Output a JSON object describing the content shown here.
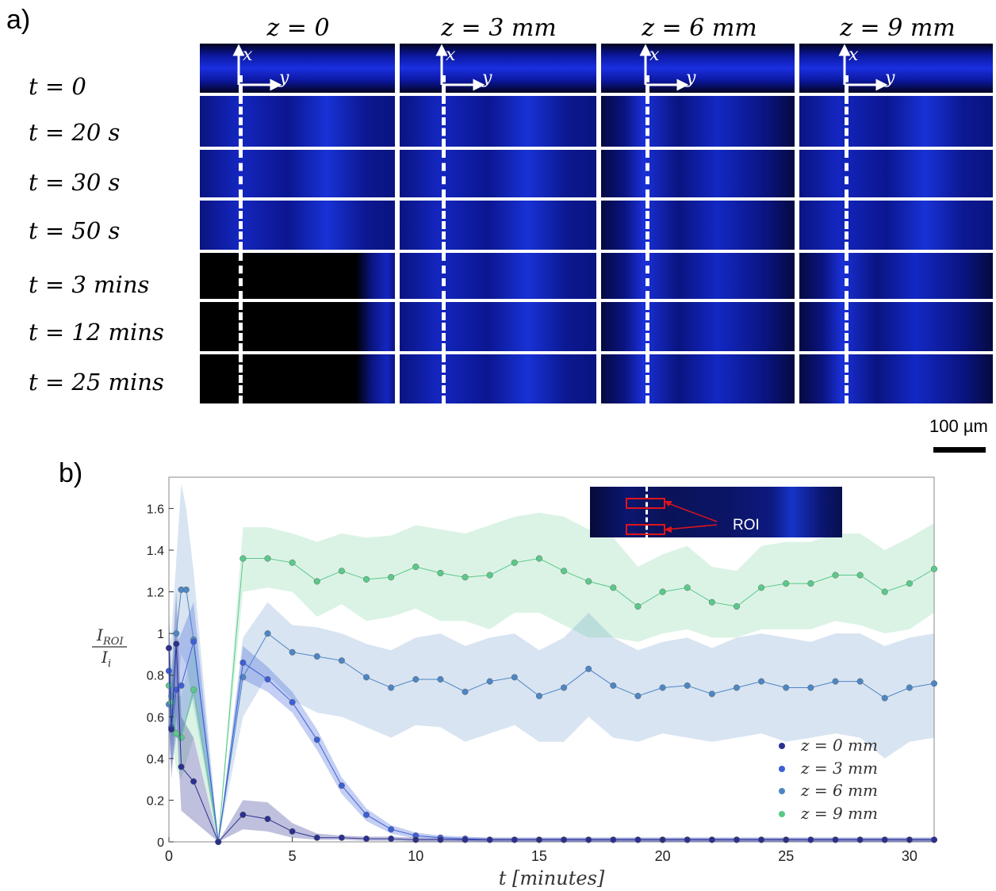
{
  "panel_a": {
    "label": "a)",
    "column_headers": [
      "z =  0",
      "z =  3 mm",
      "z =  6 mm",
      "z =  9 mm"
    ],
    "row_labels": [
      "t = 0",
      "t = 20 s",
      "t = 30 s",
      "t = 50 s",
      "t =  3 mins",
      "t =  12 mins",
      "t =  25 mins"
    ],
    "axis_x_label": "x",
    "axis_y_label": "y",
    "scale_bar": "100 µm"
  },
  "panel_b": {
    "label": "b)",
    "inset_label": "ROI",
    "ylabel_numerator": "I",
    "ylabel_numerator_sub": "ROI",
    "ylabel_denominator": "I",
    "ylabel_denominator_sub": "i",
    "xlabel": "t [minutes]"
  },
  "colors": {
    "z0": "#2b2f8f",
    "z3": "#3c5fd6",
    "z6": "#4d86c4",
    "z9": "#5ac98a",
    "tile_blue": "#1d2ee6"
  },
  "chart_data": {
    "type": "line",
    "xlabel": "t [minutes]",
    "ylabel": "I_ROI / I_i",
    "xlim": [
      0,
      31
    ],
    "ylim": [
      0,
      1.75
    ],
    "xticks": [
      0,
      5,
      10,
      15,
      20,
      25,
      30
    ],
    "yticks": [
      0,
      0.2,
      0.4,
      0.6,
      0.8,
      1,
      1.2,
      1.4,
      1.6
    ],
    "legend_position": "bottom-right",
    "series": [
      {
        "name": "z = 0 mm",
        "x": [
          0,
          0.1,
          0.3,
          0.5,
          1,
          2,
          3,
          4,
          5,
          6,
          7,
          8,
          9,
          10,
          11,
          12,
          13,
          14,
          15,
          16,
          17,
          18,
          19,
          20,
          21,
          22,
          23,
          24,
          25,
          26,
          27,
          28,
          29,
          30,
          31
        ],
        "y": [
          0.93,
          0.54,
          0.95,
          0.36,
          0.29,
          0.0,
          0.13,
          0.11,
          0.05,
          0.02,
          0.02,
          0.015,
          0.015,
          0.01,
          0.01,
          0.01,
          0.01,
          0.01,
          0.01,
          0.01,
          0.01,
          0.01,
          0.01,
          0.01,
          0.01,
          0.01,
          0.01,
          0.01,
          0.01,
          0.01,
          0.01,
          0.01,
          0.01,
          0.01,
          0.01
        ],
        "lower": [
          0.65,
          0.3,
          0.6,
          0.15,
          0.1,
          0.0,
          0.06,
          0.05,
          0.02,
          0.01,
          0.01,
          0.005,
          0.005,
          0.0,
          0.0,
          0.0,
          0.0,
          0.0,
          0.0,
          0.0,
          0.0,
          0.0,
          0.0,
          0.0,
          0.0,
          0.0,
          0.0,
          0.0,
          0.0,
          0.0,
          0.0,
          0.0,
          0.0,
          0.0,
          0.0
        ],
        "upper": [
          1.1,
          0.8,
          1.2,
          0.6,
          0.5,
          0.0,
          0.2,
          0.19,
          0.09,
          0.04,
          0.03,
          0.025,
          0.025,
          0.02,
          0.02,
          0.02,
          0.02,
          0.02,
          0.02,
          0.02,
          0.02,
          0.02,
          0.02,
          0.02,
          0.02,
          0.02,
          0.02,
          0.02,
          0.02,
          0.02,
          0.02,
          0.02,
          0.02,
          0.02,
          0.02
        ]
      },
      {
        "name": "z = 3 mm",
        "x": [
          0,
          0.1,
          0.3,
          0.5,
          1,
          2,
          3,
          4,
          5,
          6,
          7,
          8,
          9,
          10,
          11,
          12,
          13,
          14,
          15,
          16,
          17,
          18,
          19,
          20,
          21,
          22,
          23,
          24,
          25,
          26,
          27,
          28,
          29,
          30,
          31
        ],
        "y": [
          0.82,
          0.55,
          0.73,
          0.75,
          0.96,
          0.0,
          0.86,
          0.78,
          0.67,
          0.49,
          0.27,
          0.13,
          0.06,
          0.03,
          0.02,
          0.015,
          0.01,
          0.01,
          0.01,
          0.01,
          0.01,
          0.01,
          0.01,
          0.01,
          0.01,
          0.01,
          0.01,
          0.01,
          0.01,
          0.01,
          0.01,
          0.01,
          0.01,
          0.01,
          0.01
        ],
        "lower": [
          0.55,
          0.35,
          0.5,
          0.5,
          0.7,
          0.0,
          0.78,
          0.72,
          0.62,
          0.44,
          0.23,
          0.1,
          0.04,
          0.015,
          0.01,
          0.005,
          0.0,
          0.0,
          0.0,
          0.0,
          0.0,
          0.0,
          0.0,
          0.0,
          0.0,
          0.0,
          0.0,
          0.0,
          0.0,
          0.0,
          0.0,
          0.0,
          0.0,
          0.0,
          0.0
        ],
        "upper": [
          1.05,
          0.75,
          0.95,
          1.0,
          1.15,
          0.0,
          0.94,
          0.84,
          0.72,
          0.54,
          0.31,
          0.16,
          0.08,
          0.045,
          0.03,
          0.025,
          0.02,
          0.02,
          0.02,
          0.02,
          0.02,
          0.02,
          0.02,
          0.02,
          0.02,
          0.02,
          0.02,
          0.02,
          0.02,
          0.02,
          0.02,
          0.02,
          0.02,
          0.02,
          0.02
        ]
      },
      {
        "name": "z = 6 mm",
        "x": [
          0,
          0.1,
          0.3,
          0.5,
          0.7,
          1,
          2,
          3,
          4,
          5,
          6,
          7,
          8,
          9,
          10,
          11,
          12,
          13,
          14,
          15,
          16,
          17,
          18,
          19,
          20,
          21,
          22,
          23,
          24,
          25,
          26,
          27,
          28,
          29,
          30,
          31
        ],
        "y": [
          0.66,
          0.7,
          1.0,
          1.21,
          1.21,
          0.97,
          0.0,
          0.79,
          1.0,
          0.91,
          0.89,
          0.87,
          0.79,
          0.74,
          0.78,
          0.78,
          0.72,
          0.77,
          0.79,
          0.7,
          0.74,
          0.83,
          0.75,
          0.7,
          0.74,
          0.75,
          0.71,
          0.74,
          0.77,
          0.74,
          0.74,
          0.77,
          0.77,
          0.69,
          0.74,
          0.76
        ],
        "lower": [
          0.4,
          0.45,
          0.7,
          0.9,
          0.85,
          0.65,
          0.0,
          0.6,
          0.8,
          0.68,
          0.62,
          0.6,
          0.55,
          0.5,
          0.56,
          0.55,
          0.48,
          0.52,
          0.56,
          0.48,
          0.48,
          0.6,
          0.5,
          0.48,
          0.52,
          0.5,
          0.48,
          0.5,
          0.52,
          0.48,
          0.5,
          0.52,
          0.5,
          0.4,
          0.48,
          0.5
        ],
        "upper": [
          0.9,
          1.0,
          1.35,
          1.72,
          1.6,
          1.3,
          0.0,
          0.98,
          1.15,
          1.04,
          1.03,
          1.0,
          0.95,
          0.92,
          0.98,
          1.0,
          0.94,
          0.98,
          1.0,
          0.92,
          0.98,
          1.1,
          0.98,
          0.92,
          0.96,
          0.98,
          0.93,
          0.98,
          1.0,
          0.98,
          0.96,
          1.0,
          1.0,
          0.94,
          0.98,
          1.0
        ]
      },
      {
        "name": "z = 9 mm",
        "x": [
          0,
          0.1,
          0.3,
          0.5,
          1,
          2,
          3,
          4,
          5,
          6,
          7,
          8,
          9,
          10,
          11,
          12,
          13,
          14,
          15,
          16,
          17,
          18,
          19,
          20,
          21,
          22,
          23,
          24,
          25,
          26,
          27,
          28,
          29,
          30,
          31
        ],
        "y": [
          0.75,
          0.67,
          0.52,
          0.5,
          0.73,
          0.0,
          1.36,
          1.36,
          1.34,
          1.25,
          1.3,
          1.26,
          1.27,
          1.32,
          1.29,
          1.27,
          1.28,
          1.34,
          1.36,
          1.3,
          1.25,
          1.22,
          1.13,
          1.2,
          1.22,
          1.15,
          1.13,
          1.22,
          1.24,
          1.24,
          1.28,
          1.28,
          1.2,
          1.24,
          1.31
        ],
        "lower": [
          0.55,
          0.5,
          0.35,
          0.3,
          0.5,
          0.0,
          1.2,
          1.22,
          1.2,
          1.08,
          1.14,
          1.06,
          1.08,
          1.12,
          1.06,
          1.06,
          1.02,
          1.1,
          1.1,
          1.04,
          0.98,
          0.98,
          0.96,
          1.0,
          1.02,
          0.98,
          0.98,
          1.02,
          1.02,
          1.02,
          1.06,
          1.04,
          1.0,
          1.02,
          1.1
        ],
        "upper": [
          0.95,
          0.85,
          0.7,
          0.7,
          0.95,
          0.0,
          1.51,
          1.51,
          1.48,
          1.44,
          1.48,
          1.46,
          1.47,
          1.52,
          1.5,
          1.48,
          1.52,
          1.56,
          1.58,
          1.56,
          1.5,
          1.46,
          1.32,
          1.38,
          1.42,
          1.32,
          1.3,
          1.42,
          1.44,
          1.44,
          1.48,
          1.48,
          1.4,
          1.46,
          1.53
        ]
      }
    ]
  }
}
